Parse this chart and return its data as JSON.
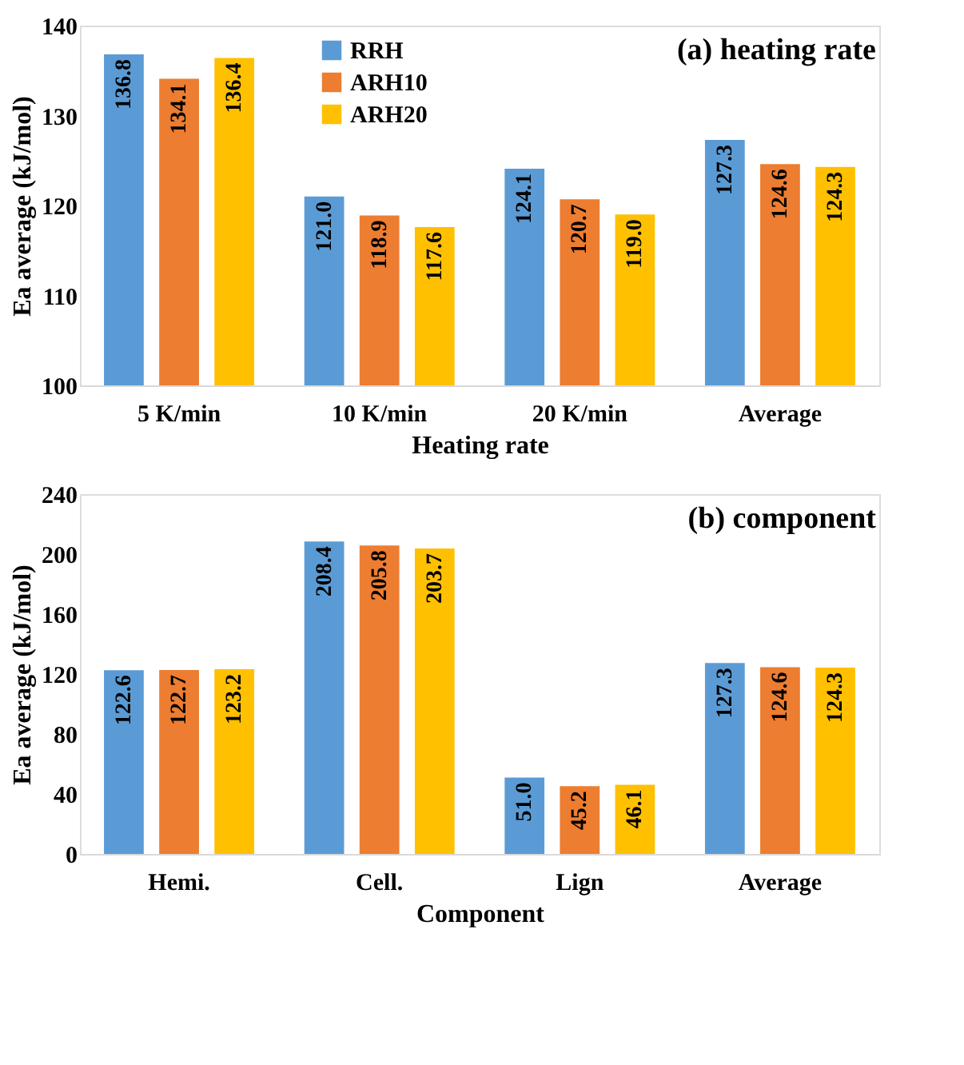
{
  "chart_data": [
    {
      "type": "bar",
      "annotations": [
        "(a) heating rate"
      ],
      "xlabel": "Heating rate",
      "ylabel": "Ea average (kJ/mol)",
      "categories": [
        "5 K/min",
        "10 K/min",
        "20 K/min",
        "Average"
      ],
      "series": [
        {
          "name": "RRH",
          "color": "#5b9bd5",
          "values": [
            136.8,
            121.0,
            124.1,
            127.3
          ],
          "value_labels": [
            "136.8",
            "121.0",
            "124.1",
            "127.3"
          ]
        },
        {
          "name": "ARH10",
          "color": "#ed7d31",
          "values": [
            134.1,
            118.9,
            120.7,
            124.6
          ],
          "value_labels": [
            "134.1",
            "118.9",
            "120.7",
            "124.6"
          ]
        },
        {
          "name": "ARH20",
          "color": "#ffc000",
          "values": [
            136.4,
            117.6,
            119.0,
            124.3
          ],
          "value_labels": [
            "136.4",
            "117.6",
            "119.0",
            "124.3"
          ]
        }
      ],
      "ylim": [
        100,
        140
      ],
      "yticks": [
        100,
        110,
        120,
        130,
        140
      ],
      "grid": false,
      "legend": "top"
    },
    {
      "type": "bar",
      "annotations": [
        "(b) component"
      ],
      "xlabel": "Component",
      "ylabel": "Ea average (kJ/mol)",
      "categories": [
        "Hemi.",
        "Cell.",
        "Lign",
        "Average"
      ],
      "series": [
        {
          "name": "RRH",
          "color": "#5b9bd5",
          "values": [
            122.6,
            208.4,
            51.0,
            127.3
          ],
          "value_labels": [
            "122.6",
            "208.4",
            "51.0",
            "127.3"
          ]
        },
        {
          "name": "ARH10",
          "color": "#ed7d31",
          "values": [
            122.7,
            205.8,
            45.2,
            124.6
          ],
          "value_labels": [
            "122.7",
            "205.8",
            "45.2",
            "124.6"
          ]
        },
        {
          "name": "ARH20",
          "color": "#ffc000",
          "values": [
            123.2,
            203.7,
            46.1,
            124.3
          ],
          "value_labels": [
            "123.2",
            "203.7",
            "46.1",
            "124.3"
          ]
        }
      ],
      "ylim": [
        0,
        240
      ],
      "yticks": [
        0,
        40,
        80,
        120,
        160,
        200,
        240
      ],
      "grid": false,
      "legend": "right"
    }
  ]
}
